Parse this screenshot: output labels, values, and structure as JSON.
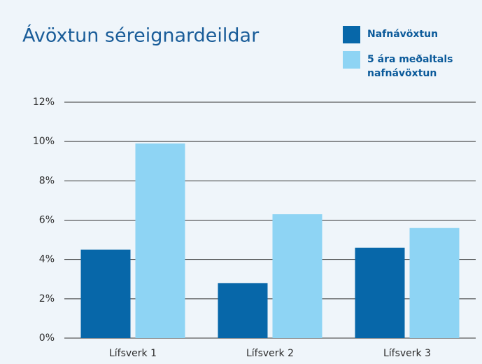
{
  "chart_data": {
    "type": "bar",
    "title": "Ávöxtun séreignardeildar",
    "categories": [
      "Lífsverk 1",
      "Lífsverk 2",
      "Lífsverk 3"
    ],
    "series": [
      {
        "name": "Nafnávöxtun",
        "color": "#0767a9",
        "values": [
          4.5,
          2.8,
          4.6
        ]
      },
      {
        "name": "5 ára meðaltals nafnávöxtun",
        "color": "#8ed4f4",
        "values": [
          9.9,
          6.3,
          5.6
        ]
      }
    ],
    "ylim": [
      0,
      12
    ],
    "yticks": [
      {
        "value": 0,
        "label": "0%"
      },
      {
        "value": 2,
        "label": "2%"
      },
      {
        "value": 4,
        "label": "4%"
      },
      {
        "value": 6,
        "label": "6%"
      },
      {
        "value": 8,
        "label": "8%"
      },
      {
        "value": 10,
        "label": "10%"
      },
      {
        "value": 12,
        "label": "12%"
      }
    ],
    "grid": true,
    "legend": "top-right"
  }
}
